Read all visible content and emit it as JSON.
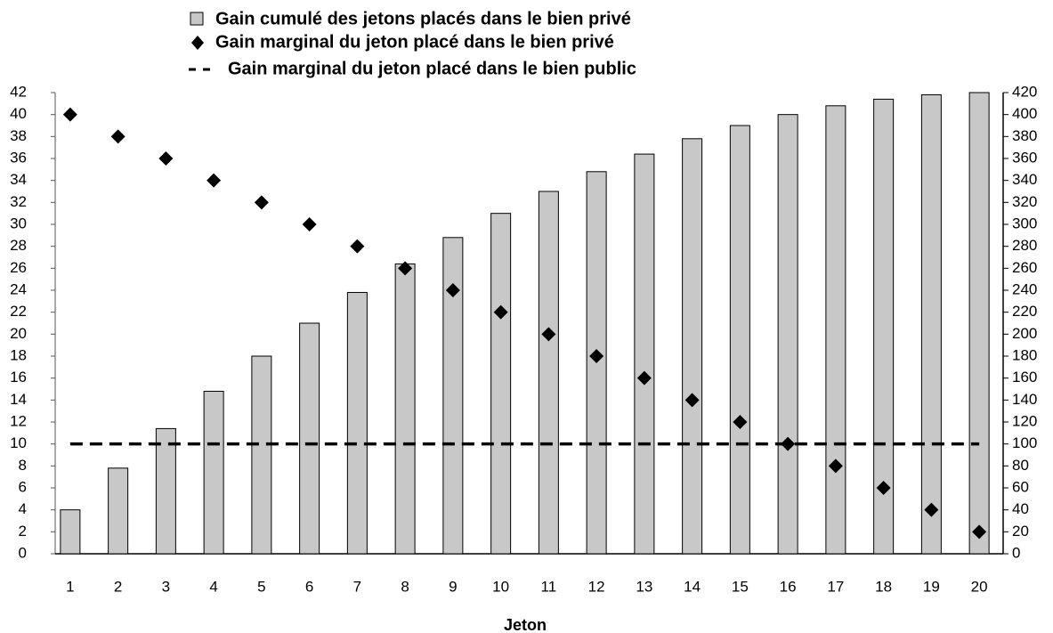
{
  "chart_data": {
    "type": "bar",
    "xlabel": "Jeton",
    "categories": [
      "1",
      "2",
      "3",
      "4",
      "5",
      "6",
      "7",
      "8",
      "9",
      "10",
      "11",
      "12",
      "13",
      "14",
      "15",
      "16",
      "17",
      "18",
      "19",
      "20"
    ],
    "series": [
      {
        "name": "Gain cumulé des jetons placés dans le bien privé",
        "type": "bar",
        "axis": "y2",
        "color": "#c8c8c8",
        "values": [
          40,
          78,
          114,
          148,
          180,
          210,
          238,
          264,
          288,
          310,
          330,
          348,
          364,
          378,
          390,
          400,
          408,
          414,
          418,
          420
        ]
      },
      {
        "name": "Gain marginal du jeton placé dans le bien privé",
        "type": "scatter",
        "color": "#000000",
        "values": [
          40,
          38,
          36,
          34,
          32,
          30,
          28,
          26,
          24,
          22,
          20,
          18,
          16,
          14,
          12,
          10,
          8,
          6,
          4,
          2
        ]
      },
      {
        "name": "Gain marginal du jeton placé dans le bien public",
        "type": "line",
        "color": "#000000",
        "values": [
          10,
          10,
          10,
          10,
          10,
          10,
          10,
          10,
          10,
          10,
          10,
          10,
          10,
          10,
          10,
          10,
          10,
          10,
          10,
          10
        ]
      }
    ],
    "ylim": [
      0,
      42
    ],
    "yticks": [
      0,
      2,
      4,
      6,
      8,
      10,
      12,
      14,
      16,
      18,
      20,
      22,
      24,
      26,
      28,
      30,
      32,
      34,
      36,
      38,
      40,
      42
    ],
    "y2lim": [
      0,
      420
    ],
    "y2ticks": [
      0,
      20,
      40,
      60,
      80,
      100,
      120,
      140,
      160,
      180,
      200,
      220,
      240,
      260,
      280,
      300,
      320,
      340,
      360,
      380,
      400,
      420
    ],
    "grid": false,
    "legend": "top"
  }
}
